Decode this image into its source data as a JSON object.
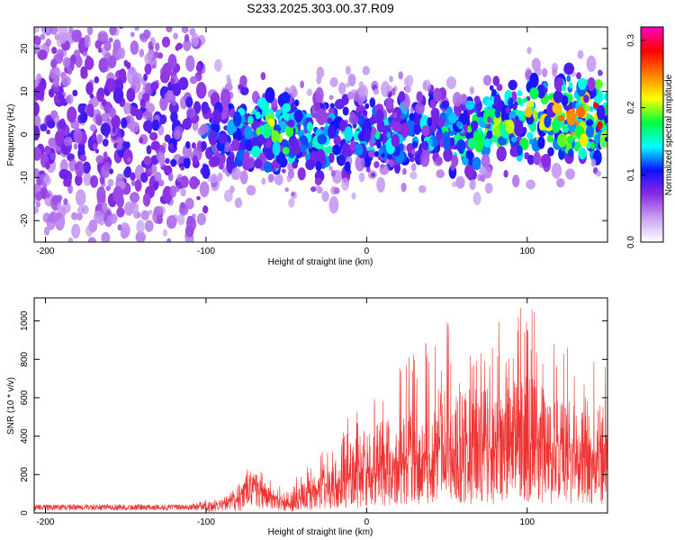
{
  "title": "S233.2025.303.00.37.R09",
  "chart_data": [
    {
      "type": "heatmap",
      "name": "spectrogram",
      "xlabel": "Height of straight line (km)",
      "ylabel": "Frequency (Hz)",
      "xlim": [
        -207,
        150
      ],
      "ylim": [
        -25,
        25
      ],
      "x_ticks": [
        -200,
        -100,
        0,
        100
      ],
      "y_ticks": [
        -20,
        -10,
        0,
        10,
        20
      ],
      "colorbar": {
        "label": "Normalized spectral amplitude",
        "range": [
          0.0,
          0.32
        ],
        "ticks": [
          "0.0",
          "0.1",
          "0.2",
          "0.3"
        ],
        "colors": [
          "#ffffff",
          "#c9a2f2",
          "#8a2be2",
          "#1010ff",
          "#00ffff",
          "#00ff40",
          "#ffff00",
          "#ff7f00",
          "#ff0000",
          "#ff00c0"
        ]
      },
      "band_center_hz": [
        [
          -207,
          3
        ],
        [
          -150,
          1
        ],
        [
          -100,
          0
        ],
        [
          -75,
          1
        ],
        [
          -50,
          0
        ],
        [
          -30,
          -1
        ],
        [
          0,
          0
        ],
        [
          30,
          1
        ],
        [
          60,
          0
        ],
        [
          80,
          2
        ],
        [
          100,
          3
        ],
        [
          130,
          4
        ],
        [
          150,
          5
        ]
      ],
      "band_intensity": [
        [
          -207,
          0.05
        ],
        [
          -110,
          0.06
        ],
        [
          -85,
          0.09
        ],
        [
          -60,
          0.15
        ],
        [
          -30,
          0.11
        ],
        [
          0,
          0.1
        ],
        [
          40,
          0.11
        ],
        [
          70,
          0.13
        ],
        [
          100,
          0.16
        ],
        [
          130,
          0.19
        ],
        [
          150,
          0.22
        ]
      ]
    },
    {
      "type": "line",
      "name": "snr",
      "xlabel": "Height of straight line (km)",
      "ylabel": "SNR (10 * v/v)",
      "xlim": [
        -207,
        150
      ],
      "ylim": [
        0,
        1120
      ],
      "x_ticks": [
        -200,
        -100,
        0,
        100
      ],
      "y_ticks": [
        0,
        200,
        400,
        600,
        800,
        1000
      ],
      "color": "#ee3333",
      "envelope_mean": [
        [
          -207,
          25
        ],
        [
          -110,
          25
        ],
        [
          -95,
          40
        ],
        [
          -80,
          70
        ],
        [
          -75,
          130
        ],
        [
          -70,
          160
        ],
        [
          -65,
          110
        ],
        [
          -55,
          60
        ],
        [
          -45,
          50
        ],
        [
          -35,
          90
        ],
        [
          -20,
          140
        ],
        [
          -10,
          170
        ],
        [
          0,
          200
        ],
        [
          20,
          240
        ],
        [
          40,
          280
        ],
        [
          60,
          300
        ],
        [
          80,
          320
        ],
        [
          100,
          320
        ],
        [
          120,
          310
        ],
        [
          150,
          300
        ]
      ],
      "envelope_max": [
        [
          -207,
          45
        ],
        [
          -110,
          45
        ],
        [
          -95,
          80
        ],
        [
          -80,
          150
        ],
        [
          -75,
          230
        ],
        [
          -70,
          260
        ],
        [
          -65,
          220
        ],
        [
          -55,
          140
        ],
        [
          -45,
          180
        ],
        [
          -35,
          260
        ],
        [
          -20,
          380
        ],
        [
          -10,
          520
        ],
        [
          0,
          640
        ],
        [
          20,
          760
        ],
        [
          30,
          850
        ],
        [
          50,
          1010
        ],
        [
          75,
          960
        ],
        [
          100,
          1100
        ],
        [
          120,
          880
        ],
        [
          150,
          820
        ]
      ]
    }
  ]
}
